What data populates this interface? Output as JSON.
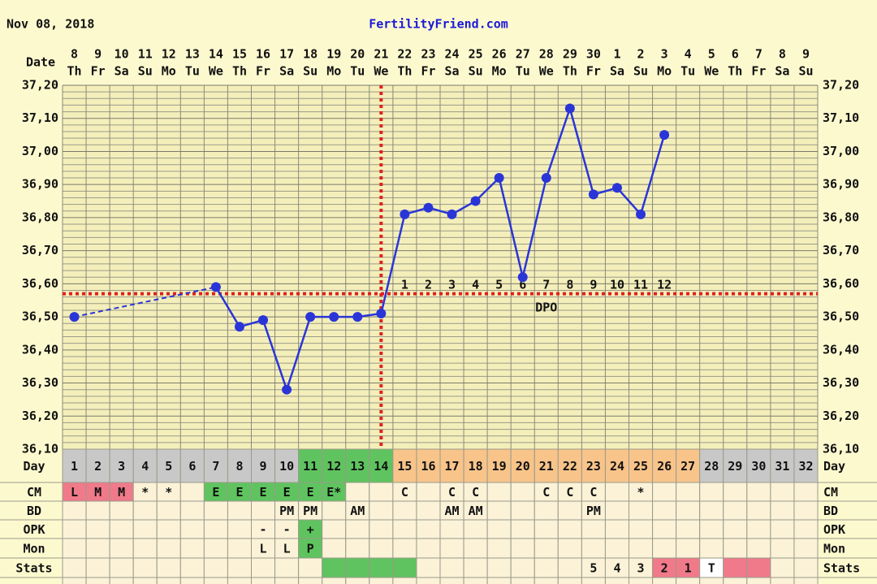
{
  "chart_data": {
    "type": "line",
    "header_date": "Nov 08, 2018",
    "site": "FertilityFriend.com",
    "date_label": "Date",
    "categories": [
      "8",
      "9",
      "10",
      "11",
      "12",
      "13",
      "14",
      "15",
      "16",
      "17",
      "18",
      "19",
      "20",
      "21",
      "22",
      "23",
      "24",
      "25",
      "26",
      "27",
      "28",
      "29",
      "30",
      "1",
      "2",
      "3",
      "4",
      "5",
      "6",
      "7",
      "8",
      "9"
    ],
    "weekdays": [
      "Th",
      "Fr",
      "Sa",
      "Su",
      "Mo",
      "Tu",
      "We",
      "Th",
      "Fr",
      "Sa",
      "Su",
      "Mo",
      "Tu",
      "We",
      "Th",
      "Fr",
      "Sa",
      "Su",
      "Mo",
      "Tu",
      "We",
      "Th",
      "Fr",
      "Sa",
      "Su",
      "Mo",
      "Tu",
      "We",
      "Th",
      "Fr",
      "Sa",
      "Su"
    ],
    "values": [
      36.5,
      null,
      null,
      null,
      null,
      null,
      36.59,
      36.47,
      36.49,
      36.28,
      36.5,
      36.5,
      36.5,
      36.51,
      36.81,
      36.83,
      36.81,
      36.85,
      36.92,
      36.62,
      36.92,
      37.13,
      36.87,
      36.89,
      36.81,
      37.05,
      null,
      null,
      null,
      null,
      null,
      null
    ],
    "color": "#2a35d8",
    "ylim": [
      36.1,
      37.2
    ],
    "yticks": [
      {
        "value": 36.1,
        "label": "36,10"
      },
      {
        "value": 36.2,
        "label": "36,20"
      },
      {
        "value": 36.3,
        "label": "36,30"
      },
      {
        "value": 36.4,
        "label": "36,40"
      },
      {
        "value": 36.5,
        "label": "36,50"
      },
      {
        "value": 36.6,
        "label": "36,60"
      },
      {
        "value": 36.7,
        "label": "36,70"
      },
      {
        "value": 36.8,
        "label": "36,80"
      },
      {
        "value": 36.9,
        "label": "36,90"
      },
      {
        "value": 37.0,
        "label": "37,00"
      },
      {
        "value": 37.1,
        "label": "37,10"
      },
      {
        "value": 37.2,
        "label": "37,20"
      }
    ],
    "grid": true,
    "coverline": 36.57,
    "ovulation_day": 14,
    "marker_color": "#e02020",
    "dpo_labels": [
      null,
      null,
      null,
      null,
      null,
      null,
      null,
      null,
      null,
      null,
      null,
      null,
      null,
      null,
      1,
      2,
      3,
      4,
      5,
      6,
      7,
      8,
      9,
      10,
      11,
      12,
      null,
      null,
      null,
      null,
      null,
      null
    ],
    "dpo_label": "DPO"
  },
  "table": {
    "rows": [
      {
        "label": "Day",
        "cells": [
          1,
          2,
          3,
          4,
          5,
          6,
          7,
          8,
          9,
          10,
          11,
          12,
          13,
          14,
          15,
          16,
          17,
          18,
          19,
          20,
          21,
          22,
          23,
          24,
          25,
          26,
          27,
          28,
          29,
          30,
          31,
          32
        ],
        "fills": [
          "#c8c8c8",
          "#c8c8c8",
          "#c8c8c8",
          "#c8c8c8",
          "#c8c8c8",
          "#c8c8c8",
          "#c8c8c8",
          "#c8c8c8",
          "#c8c8c8",
          "#c8c8c8",
          "#5fc45f",
          "#5fc45f",
          "#5fc45f",
          "#5fc45f",
          "#f8c48a",
          "#f8c48a",
          "#f8c48a",
          "#f8c48a",
          "#f8c48a",
          "#f8c48a",
          "#f8c48a",
          "#f8c48a",
          "#f8c48a",
          "#f8c48a",
          "#f8c48a",
          "#f8c48a",
          "#f8c48a",
          "#c8c8c8",
          "#c8c8c8",
          "#c8c8c8",
          "#c8c8c8",
          "#c8c8c8"
        ]
      },
      {
        "label": "CM",
        "cells": [
          "L",
          "M",
          "M",
          "*",
          "*",
          null,
          "E",
          "E",
          "E",
          "E",
          "E",
          "E*",
          null,
          null,
          "C",
          null,
          "C",
          "C",
          null,
          null,
          "C",
          "C",
          "C",
          null,
          "*",
          null,
          null,
          null,
          null,
          null,
          null,
          null
        ],
        "fills": [
          "#f07a8a",
          "#f07a8a",
          "#f07a8a",
          null,
          null,
          null,
          "#5fc45f",
          "#5fc45f",
          "#5fc45f",
          "#5fc45f",
          "#5fc45f",
          "#5fc45f",
          null,
          null,
          null,
          null,
          null,
          null,
          null,
          null,
          null,
          null,
          null,
          null,
          null,
          null,
          null,
          null,
          null,
          null,
          null,
          null
        ]
      },
      {
        "label": "BD",
        "cells": [
          null,
          null,
          null,
          null,
          null,
          null,
          null,
          null,
          null,
          "PM",
          "PM",
          null,
          "AM",
          null,
          null,
          null,
          "AM",
          "AM",
          null,
          null,
          null,
          null,
          "PM",
          null,
          null,
          null,
          null,
          null,
          null,
          null,
          null,
          null
        ],
        "fills": [
          null,
          null,
          null,
          null,
          null,
          null,
          null,
          null,
          null,
          null,
          null,
          null,
          null,
          null,
          null,
          null,
          null,
          null,
          null,
          null,
          null,
          null,
          null,
          null,
          null,
          null,
          null,
          null,
          null,
          null,
          null,
          null
        ]
      },
      {
        "label": "OPK",
        "cells": [
          null,
          null,
          null,
          null,
          null,
          null,
          null,
          null,
          "-",
          "-",
          "+",
          null,
          null,
          null,
          null,
          null,
          null,
          null,
          null,
          null,
          null,
          null,
          null,
          null,
          null,
          null,
          null,
          null,
          null,
          null,
          null,
          null
        ],
        "fills": [
          null,
          null,
          null,
          null,
          null,
          null,
          null,
          null,
          null,
          null,
          "#5fc45f",
          null,
          null,
          null,
          null,
          null,
          null,
          null,
          null,
          null,
          null,
          null,
          null,
          null,
          null,
          null,
          null,
          null,
          null,
          null,
          null,
          null
        ]
      },
      {
        "label": "Mon",
        "cells": [
          null,
          null,
          null,
          null,
          null,
          null,
          null,
          null,
          "L",
          "L",
          "P",
          null,
          null,
          null,
          null,
          null,
          null,
          null,
          null,
          null,
          null,
          null,
          null,
          null,
          null,
          null,
          null,
          null,
          null,
          null,
          null,
          null
        ],
        "fills": [
          null,
          null,
          null,
          null,
          null,
          null,
          null,
          null,
          null,
          null,
          "#5fc45f",
          null,
          null,
          null,
          null,
          null,
          null,
          null,
          null,
          null,
          null,
          null,
          null,
          null,
          null,
          null,
          null,
          null,
          null,
          null,
          null,
          null
        ]
      },
      {
        "label": "Stats",
        "cells": [
          null,
          null,
          null,
          null,
          null,
          null,
          null,
          null,
          null,
          null,
          null,
          null,
          null,
          null,
          null,
          null,
          null,
          null,
          null,
          null,
          null,
          null,
          "5",
          "4",
          "3",
          "2",
          "1",
          "T",
          null,
          null,
          null,
          null
        ],
        "fills": [
          null,
          null,
          null,
          null,
          null,
          null,
          null,
          null,
          null,
          null,
          null,
          "#5fc45f",
          "#5fc45f",
          "#5fc45f",
          "#5fc45f",
          null,
          null,
          null,
          null,
          null,
          null,
          null,
          null,
          null,
          null,
          "#f07a8a",
          "#f07a8a",
          "#ffffff",
          "#f07a8a",
          "#f07a8a",
          null,
          null
        ]
      }
    ]
  }
}
